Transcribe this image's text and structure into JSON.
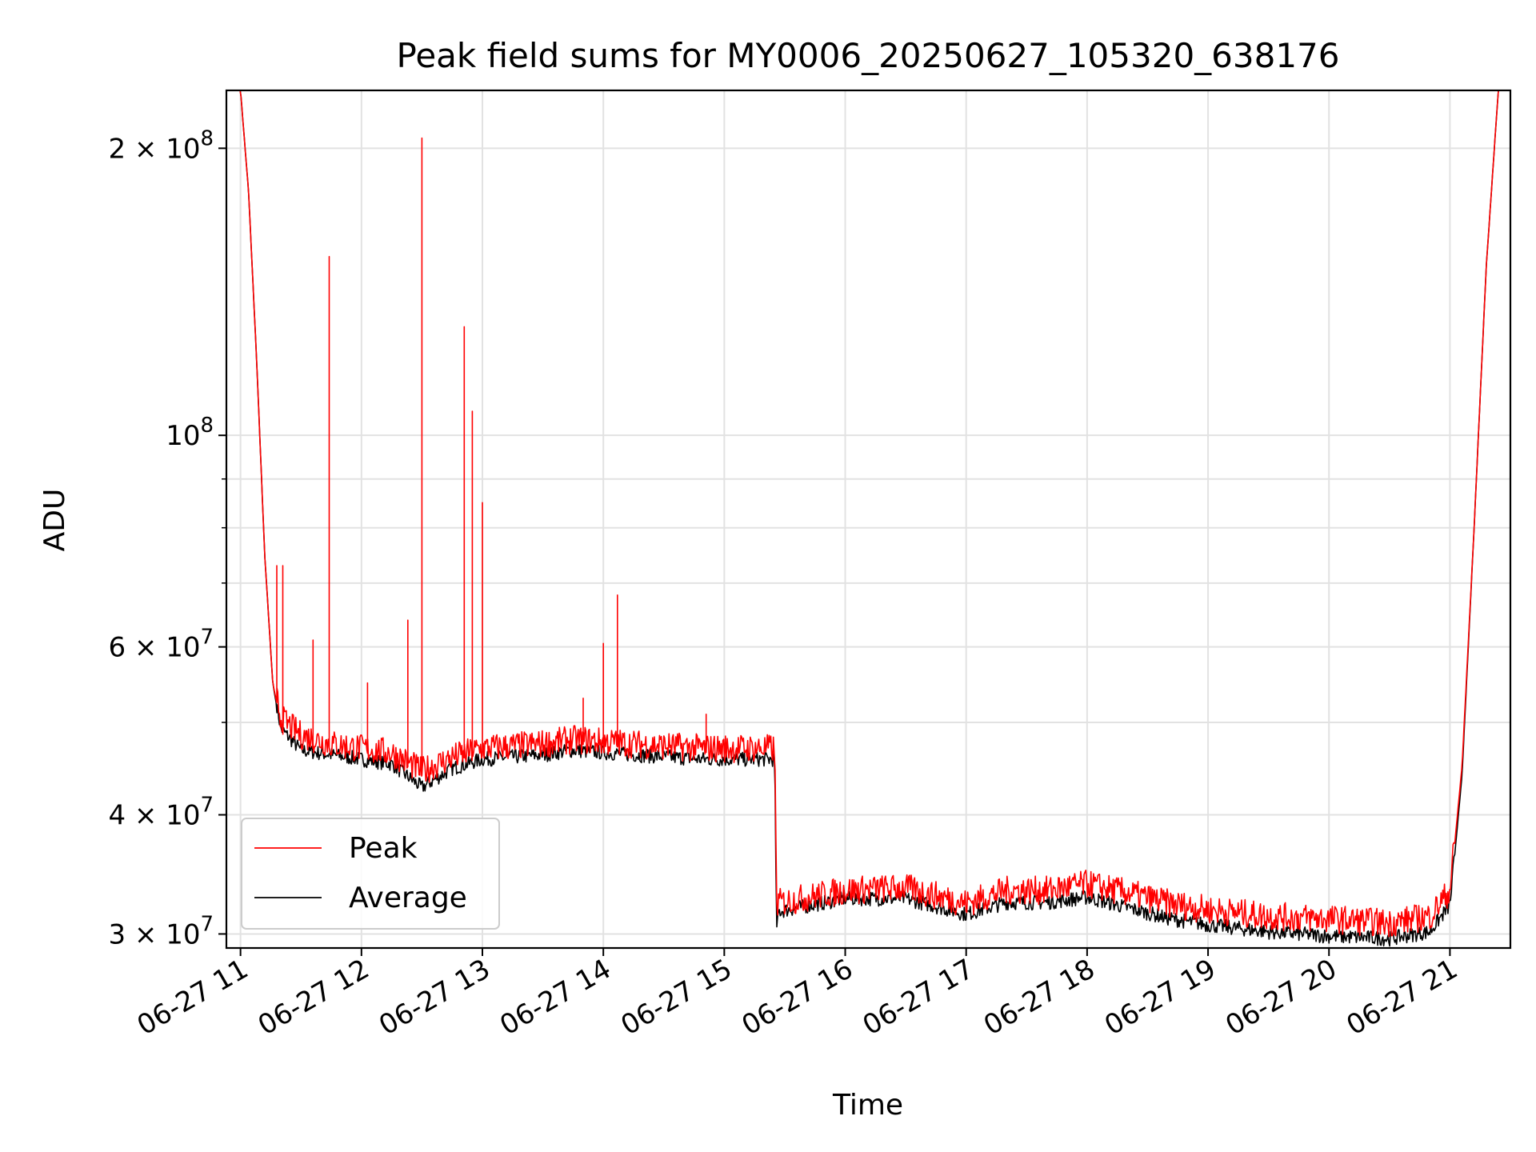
{
  "chart_data": {
    "type": "line",
    "title": "Peak field sums for MY0006_20250627_105320_638176",
    "xlabel": "Time",
    "ylabel": "ADU",
    "yscale": "log",
    "xlim": [
      "2025-06-27 10:53",
      "2025-06-27 21:30"
    ],
    "ylim": [
      29000000,
      230000000
    ],
    "grid": true,
    "legend_position": "lower-left",
    "x_ticks": [
      "06-27 11",
      "06-27 12",
      "06-27 13",
      "06-27 14",
      "06-27 15",
      "06-27 16",
      "06-27 17",
      "06-27 18",
      "06-27 19",
      "06-27 20",
      "06-27 21"
    ],
    "y_ticks": [
      {
        "value": 30000000,
        "mantissa": "3",
        "exponent": "7"
      },
      {
        "value": 40000000,
        "mantissa": "4",
        "exponent": "7"
      },
      {
        "value": 60000000,
        "mantissa": "6",
        "exponent": "7"
      },
      {
        "value": 100000000,
        "mantissa": "",
        "exponent": "8"
      },
      {
        "value": 200000000,
        "mantissa": "2",
        "exponent": "8"
      }
    ],
    "y_minor_ticks": [
      50000000,
      70000000,
      80000000,
      90000000
    ],
    "series": [
      {
        "name": "Peak",
        "color": "#ff0000",
        "baseline": [
          [
            "2025-06-27 10:53",
            230000000
          ],
          [
            "2025-06-27 11:00",
            230000000
          ],
          [
            "2025-06-27 11:04",
            180000000
          ],
          [
            "2025-06-27 11:08",
            120000000
          ],
          [
            "2025-06-27 11:12",
            75000000
          ],
          [
            "2025-06-27 11:16",
            55000000
          ],
          [
            "2025-06-27 11:20",
            50000000
          ],
          [
            "2025-06-27 11:30",
            48000000
          ],
          [
            "2025-06-27 11:45",
            47000000
          ],
          [
            "2025-06-27 12:00",
            46500000
          ],
          [
            "2025-06-27 12:15",
            46000000
          ],
          [
            "2025-06-27 12:30",
            44000000
          ],
          [
            "2025-06-27 12:45",
            45500000
          ],
          [
            "2025-06-27 13:00",
            46500000
          ],
          [
            "2025-06-27 13:30",
            47000000
          ],
          [
            "2025-06-27 13:45",
            47500000
          ],
          [
            "2025-06-27 14:15",
            47000000
          ],
          [
            "2025-06-27 14:50",
            46500000
          ],
          [
            "2025-06-27 15:25",
            46500000
          ],
          [
            "2025-06-27 15:26",
            32000000
          ],
          [
            "2025-06-27 16:00",
            33000000
          ],
          [
            "2025-06-27 16:30",
            33200000
          ],
          [
            "2025-06-27 17:00",
            32000000
          ],
          [
            "2025-06-27 17:20",
            33000000
          ],
          [
            "2025-06-27 17:40",
            33000000
          ],
          [
            "2025-06-27 18:00",
            33500000
          ],
          [
            "2025-06-27 18:20",
            32800000
          ],
          [
            "2025-06-27 18:40",
            32000000
          ],
          [
            "2025-06-27 19:00",
            31500000
          ],
          [
            "2025-06-27 19:30",
            31000000
          ],
          [
            "2025-06-27 20:00",
            30800000
          ],
          [
            "2025-06-27 20:30",
            30500000
          ],
          [
            "2025-06-27 20:50",
            31000000
          ],
          [
            "2025-06-27 21:00",
            33000000
          ],
          [
            "2025-06-27 21:06",
            45000000
          ],
          [
            "2025-06-27 21:12",
            80000000
          ],
          [
            "2025-06-27 21:18",
            150000000
          ],
          [
            "2025-06-27 21:24",
            230000000
          ],
          [
            "2025-06-27 21:30",
            230000000
          ]
        ],
        "spikes": [
          [
            "2025-06-27 11:18",
            73000000
          ],
          [
            "2025-06-27 11:21",
            73000000
          ],
          [
            "2025-06-27 11:36",
            61000000
          ],
          [
            "2025-06-27 11:44",
            154000000
          ],
          [
            "2025-06-27 12:03",
            55000000
          ],
          [
            "2025-06-27 12:23",
            64000000
          ],
          [
            "2025-06-27 12:30",
            205000000
          ],
          [
            "2025-06-27 12:51",
            130000000
          ],
          [
            "2025-06-27 12:55",
            106000000
          ],
          [
            "2025-06-27 13:00",
            85000000
          ],
          [
            "2025-06-27 13:50",
            53000000
          ],
          [
            "2025-06-27 14:00",
            60500000
          ],
          [
            "2025-06-27 14:07",
            68000000
          ],
          [
            "2025-06-27 14:51",
            51000000
          ]
        ]
      },
      {
        "name": "Average",
        "color": "#000000",
        "baseline": [
          [
            "2025-06-27 10:53",
            230000000
          ],
          [
            "2025-06-27 11:00",
            230000000
          ],
          [
            "2025-06-27 11:04",
            180000000
          ],
          [
            "2025-06-27 11:08",
            120000000
          ],
          [
            "2025-06-27 11:12",
            75000000
          ],
          [
            "2025-06-27 11:16",
            55000000
          ],
          [
            "2025-06-27 11:20",
            49000000
          ],
          [
            "2025-06-27 11:30",
            46500000
          ],
          [
            "2025-06-27 11:45",
            46000000
          ],
          [
            "2025-06-27 12:00",
            45500000
          ],
          [
            "2025-06-27 12:15",
            45000000
          ],
          [
            "2025-06-27 12:30",
            42500000
          ],
          [
            "2025-06-27 12:45",
            44500000
          ],
          [
            "2025-06-27 13:00",
            45500000
          ],
          [
            "2025-06-27 13:30",
            46000000
          ],
          [
            "2025-06-27 13:45",
            46500000
          ],
          [
            "2025-06-27 14:15",
            46000000
          ],
          [
            "2025-06-27 14:50",
            45500000
          ],
          [
            "2025-06-27 15:25",
            45500000
          ],
          [
            "2025-06-27 15:26",
            30000000
          ],
          [
            "2025-06-27 15:27",
            31500000
          ],
          [
            "2025-06-27 16:00",
            32500000
          ],
          [
            "2025-06-27 16:30",
            32500000
          ],
          [
            "2025-06-27 17:00",
            31300000
          ],
          [
            "2025-06-27 17:20",
            32200000
          ],
          [
            "2025-06-27 17:40",
            32200000
          ],
          [
            "2025-06-27 18:00",
            32600000
          ],
          [
            "2025-06-27 18:20",
            31800000
          ],
          [
            "2025-06-27 18:40",
            31000000
          ],
          [
            "2025-06-27 19:00",
            30500000
          ],
          [
            "2025-06-27 19:30",
            30000000
          ],
          [
            "2025-06-27 20:00",
            29700000
          ],
          [
            "2025-06-27 20:30",
            29500000
          ],
          [
            "2025-06-27 20:50",
            30000000
          ],
          [
            "2025-06-27 21:00",
            32000000
          ],
          [
            "2025-06-27 21:06",
            44000000
          ],
          [
            "2025-06-27 21:12",
            80000000
          ],
          [
            "2025-06-27 21:18",
            150000000
          ],
          [
            "2025-06-27 21:24",
            230000000
          ],
          [
            "2025-06-27 21:30",
            230000000
          ]
        ]
      }
    ]
  }
}
